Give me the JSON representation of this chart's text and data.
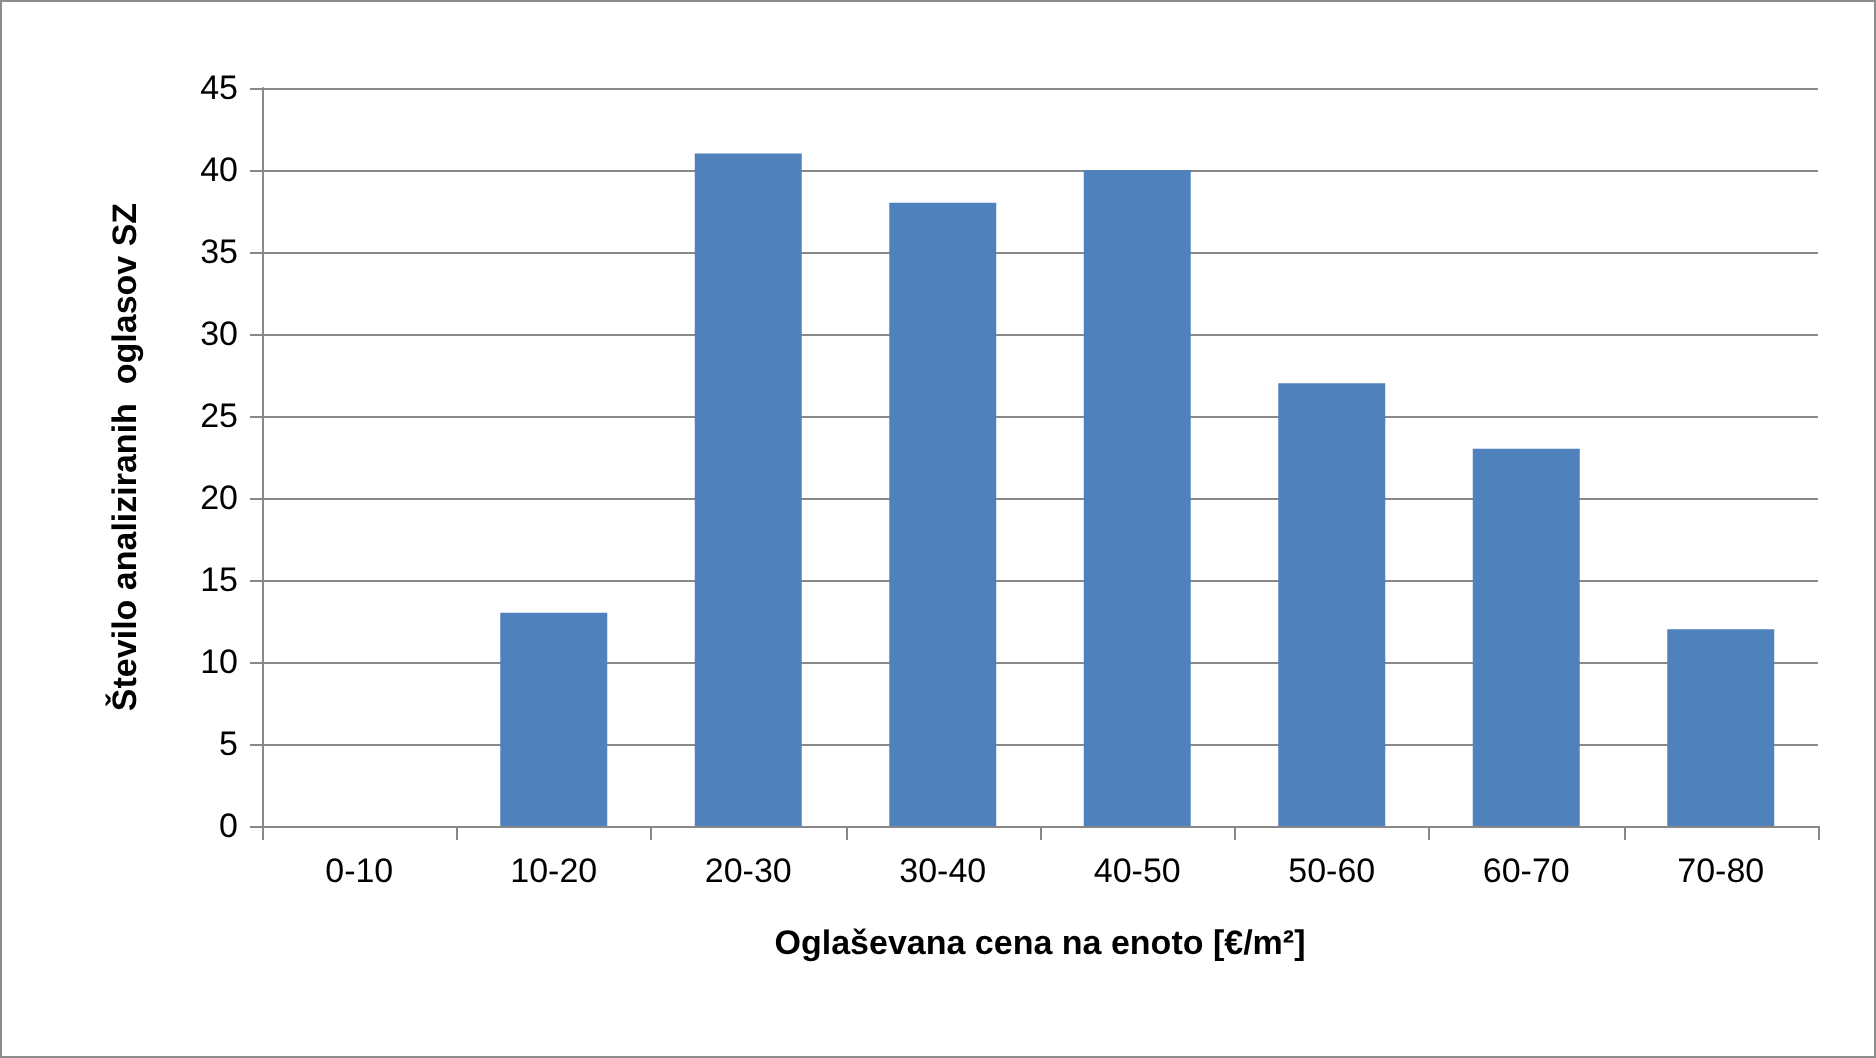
{
  "chart_data": {
    "type": "bar",
    "xlabel": "Oglaševana cena na enoto [€/m²]",
    "ylabel": "Število analiziranih  oglasov SZ",
    "categories": [
      "0-10",
      "10-20",
      "20-30",
      "30-40",
      "40-50",
      "50-60",
      "60-70",
      "70-80"
    ],
    "values": [
      0,
      13,
      41,
      38,
      40,
      27,
      23,
      12
    ],
    "color": "#4f81bd",
    "ylim": [
      0,
      45
    ],
    "yticks": [
      0,
      5,
      10,
      15,
      20,
      25,
      30,
      35,
      40,
      45
    ],
    "grid": "y"
  }
}
